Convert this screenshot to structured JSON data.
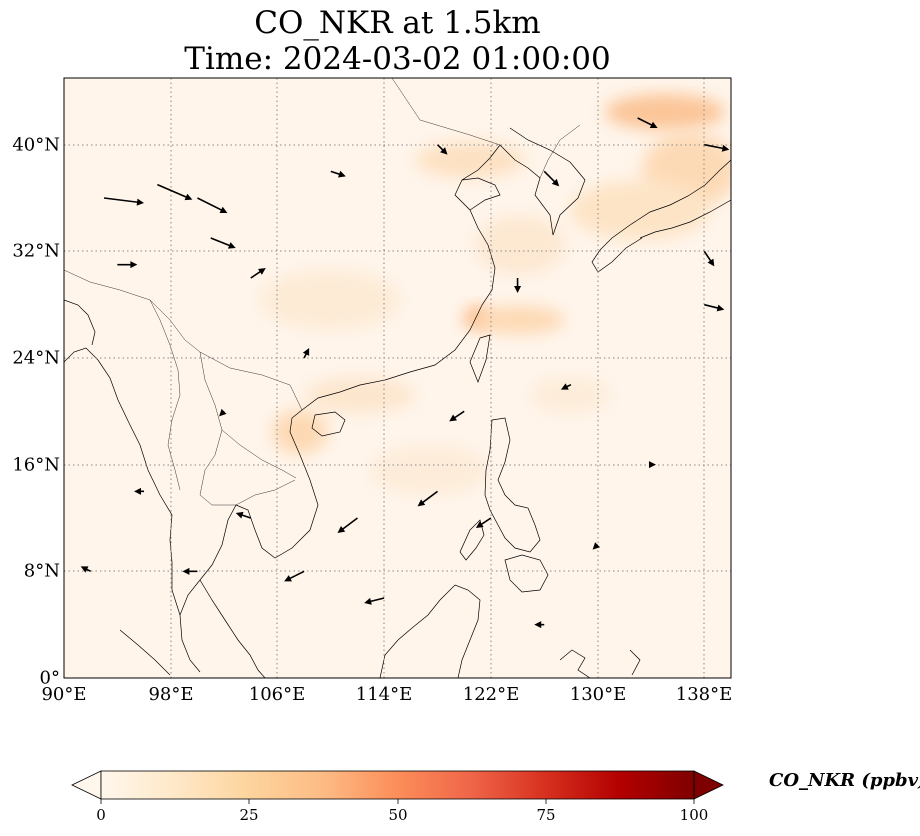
{
  "figure": {
    "title_line1": "CO_NKR at 1.5km",
    "title_line2": "Time: 2024-03-02 01:00:00"
  },
  "map": {
    "projection": "PlateCarree",
    "extent": {
      "lon": [
        90,
        140
      ],
      "lat": [
        0,
        45
      ]
    },
    "background_color": "#fff5eb",
    "gridlines": "dotted",
    "lat_ticks": [
      "0°",
      "8°N",
      "16°N",
      "24°N",
      "32°N",
      "40°N"
    ],
    "lon_ticks": [
      "90°E",
      "98°E",
      "106°E",
      "114°E",
      "122°E",
      "130°E",
      "138°E"
    ],
    "enhanced_regions": [
      {
        "area": "Sea of Japan",
        "lon": 133,
        "lat": 37.5,
        "level": 20
      },
      {
        "area": "Japan",
        "lon": 136,
        "lat": 35,
        "level": 15
      },
      {
        "area": "Bohai Sea",
        "lon": 120,
        "lat": 38.5,
        "level": 15
      },
      {
        "area": "Taiwan Strait",
        "lon": 119.5,
        "lat": 27,
        "level": 25
      },
      {
        "area": "South China coast",
        "lon": 113,
        "lat": 22,
        "level": 10
      },
      {
        "area": "Northern Vietnam",
        "lon": 107.5,
        "lat": 19,
        "level": 15
      }
    ]
  },
  "colorbar": {
    "label": "CO_NKR (ppbv)",
    "ticks": [
      "0",
      "25",
      "50",
      "75",
      "100"
    ],
    "range": [
      0,
      100
    ],
    "extend": "both",
    "colormap": "OrRd",
    "colors": [
      "#fff7ec",
      "#fee8c8",
      "#fdd49e",
      "#fdbb84",
      "#fc8d59",
      "#ef6548",
      "#d7301f",
      "#b30000",
      "#7f0000"
    ]
  },
  "wind_vectors_sample": [
    {
      "lon": 93,
      "lat": 36,
      "u": 8,
      "v": -1
    },
    {
      "lon": 97,
      "lat": 37,
      "u": 7,
      "v": -3
    },
    {
      "lon": 100,
      "lat": 36,
      "u": 6,
      "v": -3
    },
    {
      "lon": 101,
      "lat": 33,
      "u": 5,
      "v": -2
    },
    {
      "lon": 94,
      "lat": 31,
      "u": 4,
      "v": 0
    },
    {
      "lon": 104,
      "lat": 30,
      "u": 3,
      "v": 2
    },
    {
      "lon": 110,
      "lat": 38,
      "u": 3,
      "v": -1
    },
    {
      "lon": 118,
      "lat": 40,
      "u": 2,
      "v": -2
    },
    {
      "lon": 126,
      "lat": 38,
      "u": 3,
      "v": -3
    },
    {
      "lon": 133,
      "lat": 42,
      "u": 4,
      "v": -2
    },
    {
      "lon": 138,
      "lat": 40,
      "u": 5,
      "v": -1
    },
    {
      "lon": 138,
      "lat": 32,
      "u": 2,
      "v": -3
    },
    {
      "lon": 138,
      "lat": 28,
      "u": 4,
      "v": -1
    },
    {
      "lon": 120,
      "lat": 20,
      "u": -3,
      "v": -2
    },
    {
      "lon": 118,
      "lat": 14,
      "u": -4,
      "v": -3
    },
    {
      "lon": 112,
      "lat": 12,
      "u": -4,
      "v": -3
    },
    {
      "lon": 108,
      "lat": 8,
      "u": -4,
      "v": -2
    },
    {
      "lon": 114,
      "lat": 6,
      "u": -4,
      "v": -1
    },
    {
      "lon": 122,
      "lat": 12,
      "u": -3,
      "v": -2
    },
    {
      "lon": 128,
      "lat": 22,
      "u": -2,
      "v": -1
    },
    {
      "lon": 104,
      "lat": 12,
      "u": -3,
      "v": 1
    },
    {
      "lon": 100,
      "lat": 8,
      "u": -3,
      "v": 0
    },
    {
      "lon": 96,
      "lat": 14,
      "u": -2,
      "v": 0
    },
    {
      "lon": 92,
      "lat": 8,
      "u": -2,
      "v": 1
    },
    {
      "lon": 124,
      "lat": 30,
      "u": 0,
      "v": -3
    },
    {
      "lon": 130,
      "lat": 10,
      "u": -1,
      "v": -1
    },
    {
      "lon": 134,
      "lat": 16,
      "u": 1,
      "v": 0
    },
    {
      "lon": 108,
      "lat": 24,
      "u": 1,
      "v": 2
    },
    {
      "lon": 102,
      "lat": 20,
      "u": -1,
      "v": -1
    },
    {
      "lon": 126,
      "lat": 4,
      "u": -2,
      "v": 0
    }
  ]
}
